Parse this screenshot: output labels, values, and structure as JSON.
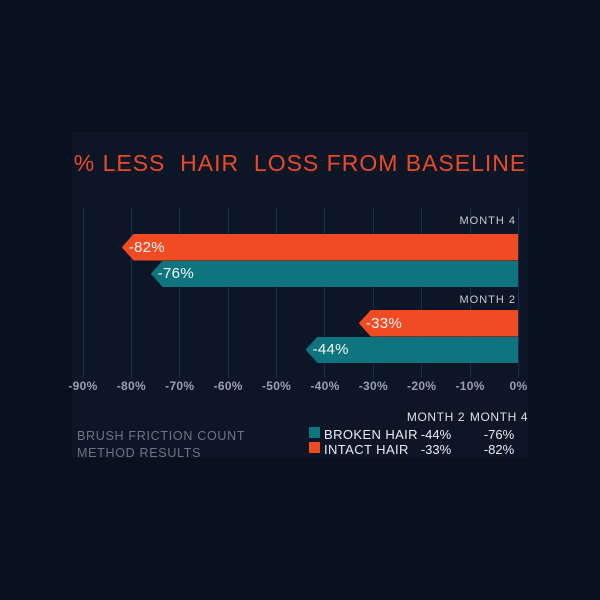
{
  "background": {
    "outer": "#09101f",
    "panel": "#0d1626",
    "gridline": "#1c2b50"
  },
  "title": {
    "text": "% LESS  HAIR  LOSS FROM BASELINE",
    "color": "#ea4b26"
  },
  "caption": {
    "line1": "BRUSH FRICTION COUNT",
    "line2": "METHOD RESULTS"
  },
  "legend": {
    "headers": [
      "MONTH 2",
      "MONTH 4"
    ],
    "rows": [
      {
        "swatch": "teal-square",
        "color": "#0e757e",
        "label": "BROKEN HAIR",
        "month2": "-44%",
        "month4": "-76%"
      },
      {
        "swatch": "orange-square",
        "color": "#f04b23",
        "label": "INTACT HAIR",
        "month2": "-33%",
        "month4": "-82%"
      }
    ]
  },
  "chart_data": {
    "type": "bar",
    "orientation": "horizontal",
    "title": "% LESS  HAIR  LOSS FROM BASELINE",
    "xlabel": "",
    "ylabel": "",
    "xlim": [
      -90,
      0
    ],
    "x_ticks": [
      "-90%",
      "-80%",
      "-70%",
      "-60%",
      "-50%",
      "-40%",
      "-30%",
      "-20%",
      "-10%",
      "0%"
    ],
    "grid": true,
    "legend_position": "bottom-right",
    "groups": [
      {
        "label": "MONTH 4",
        "bars": [
          {
            "series": "INTACT HAIR",
            "value": -82,
            "data_label": "-82%",
            "color": "#f04b23"
          },
          {
            "series": "BROKEN HAIR",
            "value": -76,
            "data_label": "-76%",
            "color": "#0e757e"
          }
        ]
      },
      {
        "label": "MONTH 2",
        "bars": [
          {
            "series": "INTACT HAIR",
            "value": -33,
            "data_label": "-33%",
            "color": "#f04b23"
          },
          {
            "series": "BROKEN HAIR",
            "value": -44,
            "data_label": "-44%",
            "color": "#0e757e"
          }
        ]
      }
    ]
  }
}
